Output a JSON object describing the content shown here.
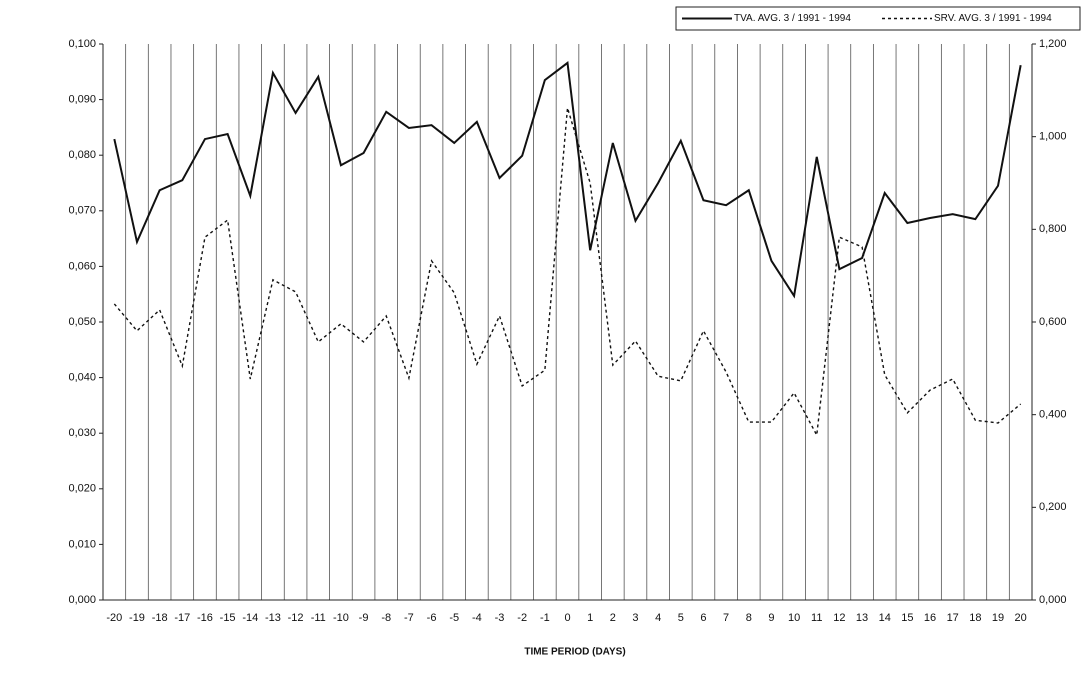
{
  "chart_data": {
    "type": "line",
    "x_label": "TIME PERIOD (DAYS)",
    "categories": [
      "-20",
      "-19",
      "-18",
      "-17",
      "-16",
      "-15",
      "-14",
      "-13",
      "-12",
      "-11",
      "-10",
      "-9",
      "-8",
      "-7",
      "-6",
      "-5",
      "-4",
      "-3",
      "-2",
      "-1",
      "0",
      "1",
      "2",
      "3",
      "4",
      "5",
      "6",
      "7",
      "8",
      "9",
      "10",
      "11",
      "12",
      "13",
      "14",
      "15",
      "16",
      "17",
      "18",
      "19",
      "20"
    ],
    "series": [
      {
        "name": "TVA. AVG. 3 / 1991 - 1994",
        "color": "#111111",
        "dash": "solid",
        "values": [
          0.0829,
          0.0644,
          0.0737,
          0.0755,
          0.0829,
          0.0838,
          0.0727,
          0.0948,
          0.0876,
          0.0941,
          0.0782,
          0.0804,
          0.0878,
          0.0849,
          0.0854,
          0.0822,
          0.086,
          0.0759,
          0.0799,
          0.0935,
          0.0966,
          0.0629,
          0.0822,
          0.0682,
          0.075,
          0.0826,
          0.0719,
          0.071,
          0.0737,
          0.061,
          0.0547,
          0.0797,
          0.0595,
          0.0615,
          0.0732,
          0.0678,
          0.0687,
          0.0694,
          0.0685,
          0.0745,
          0.0962
        ]
      },
      {
        "name": "SRV. AVG. 3 / 1991 - 1994",
        "color": "#111111",
        "dash": "dotted",
        "axis": "y2",
        "values": [
          0.639,
          0.581,
          0.626,
          0.505,
          0.783,
          0.82,
          0.477,
          0.691,
          0.665,
          0.557,
          0.596,
          0.557,
          0.613,
          0.479,
          0.732,
          0.663,
          0.509,
          0.613,
          0.462,
          0.496,
          1.062,
          0.9,
          0.507,
          0.559,
          0.483,
          0.473,
          0.581,
          0.492,
          0.384,
          0.384,
          0.447,
          0.356,
          0.783,
          0.762,
          0.486,
          0.404,
          0.453,
          0.477,
          0.388,
          0.382,
          0.423
        ]
      }
    ],
    "ylim": [
      0,
      0.1
    ],
    "yticks": [
      {
        "value": 0,
        "label": "0,000"
      },
      {
        "value": 0.01,
        "label": "0,010"
      },
      {
        "value": 0.02,
        "label": "0,020"
      },
      {
        "value": 0.03,
        "label": "0,030"
      },
      {
        "value": 0.04,
        "label": "0,040"
      },
      {
        "value": 0.05,
        "label": "0,050"
      },
      {
        "value": 0.06,
        "label": "0,060"
      },
      {
        "value": 0.07,
        "label": "0,070"
      },
      {
        "value": 0.08,
        "label": "0,080"
      },
      {
        "value": 0.09,
        "label": "0,090"
      },
      {
        "value": 0.1,
        "label": "0,100"
      }
    ],
    "y2lim": [
      0,
      1.2
    ],
    "y2ticks": [
      {
        "value": 0,
        "label": "0,000"
      },
      {
        "value": 0.2,
        "label": "0,200"
      },
      {
        "value": 0.4,
        "label": "0,400"
      },
      {
        "value": 0.6,
        "label": "0,600"
      },
      {
        "value": 0.8,
        "label": "0,800"
      },
      {
        "value": 1,
        "label": "1,000"
      },
      {
        "value": 1.2,
        "label": "1,200"
      }
    ],
    "grid": "vertical",
    "legend": "top-right"
  }
}
